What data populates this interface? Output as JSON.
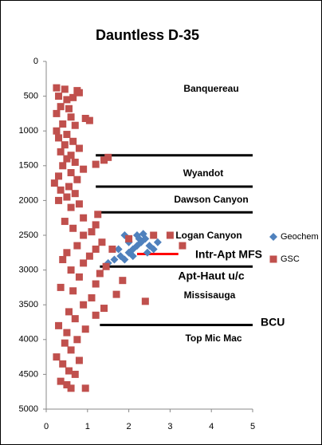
{
  "chart_data": {
    "type": "scatter",
    "title": "Dauntless D-35",
    "xlim": [
      0,
      5
    ],
    "xticks": [
      0,
      1,
      2,
      3,
      4,
      5
    ],
    "ylim": [
      0,
      5000
    ],
    "yticks": [
      0,
      500,
      1000,
      1500,
      2000,
      2500,
      3000,
      3500,
      4000,
      4500,
      5000
    ],
    "y_inverted": true,
    "grid": false,
    "legend": "right",
    "series": [
      {
        "name": "Geochem",
        "color": "#4f81bd",
        "marker": "diamond",
        "x": [
          1.5,
          1.65,
          1.8,
          1.9,
          2.0,
          2.1,
          2.2,
          2.3,
          2.4,
          2.5,
          2.7,
          2.2,
          2.0,
          1.9,
          2.35,
          2.6,
          2.1,
          1.75,
          2.45,
          2.25
        ],
        "values": [
          2900,
          2850,
          2800,
          2850,
          2750,
          2700,
          2650,
          2600,
          2550,
          2650,
          2600,
          2500,
          2600,
          2500,
          2480,
          2700,
          2800,
          2700,
          2750,
          2550
        ]
      },
      {
        "name": "GSC",
        "color": "#c0504d",
        "marker": "square",
        "x": [
          0.25,
          0.45,
          0.75,
          0.8,
          0.3,
          0.5,
          0.65,
          0.35,
          0.55,
          0.25,
          0.6,
          0.95,
          1.05,
          0.4,
          0.7,
          0.25,
          0.5,
          0.3,
          0.65,
          0.45,
          0.8,
          0.35,
          0.6,
          0.5,
          0.7,
          1.2,
          1.4,
          1.5,
          0.4,
          0.9,
          0.6,
          0.3,
          0.75,
          0.2,
          0.55,
          0.35,
          0.7,
          0.5,
          0.3,
          0.8,
          0.6,
          1.25,
          0.9,
          0.45,
          1.2,
          0.65,
          1.1,
          0.9,
          2.0,
          2.6,
          1.35,
          0.75,
          1.2,
          1.6,
          0.5,
          1.05,
          0.4,
          0.9,
          1.45,
          0.6,
          1.3,
          0.8,
          1.85,
          0.35,
          1.2,
          1.7,
          0.65,
          1.1,
          2.4,
          0.9,
          1.4,
          0.55,
          1.2,
          0.7,
          0.3,
          0.95,
          0.5,
          0.75,
          0.45,
          0.6,
          0.25,
          0.8,
          0.4,
          0.55,
          0.7,
          0.35,
          0.5,
          0.6,
          0.95,
          3.3,
          3.0
        ],
        "values": [
          380,
          400,
          420,
          450,
          500,
          550,
          520,
          650,
          680,
          750,
          800,
          820,
          850,
          900,
          920,
          1000,
          1050,
          1100,
          1150,
          1200,
          1250,
          1300,
          1350,
          1400,
          1450,
          1480,
          1420,
          1380,
          1500,
          1550,
          1600,
          1650,
          1700,
          1750,
          1800,
          1850,
          1900,
          1950,
          2000,
          2050,
          2100,
          2200,
          2250,
          2300,
          2350,
          2400,
          2450,
          2500,
          2550,
          2500,
          2600,
          2650,
          2700,
          2700,
          2750,
          2800,
          2850,
          2900,
          2950,
          3000,
          3050,
          3100,
          3150,
          3250,
          3200,
          3350,
          3300,
          3400,
          3450,
          3500,
          3550,
          3600,
          3650,
          3700,
          3800,
          3850,
          3900,
          4000,
          4050,
          4150,
          4250,
          4300,
          4350,
          4450,
          4500,
          4600,
          4650,
          4700,
          4700,
          2650,
          2500
        ]
      }
    ],
    "horizontal_lines": [
      {
        "y": 1350,
        "x": [
          1.2,
          5
        ],
        "color": "#000000"
      },
      {
        "y": 1800,
        "x": [
          1.2,
          5
        ],
        "color": "#000000"
      },
      {
        "y": 2170,
        "x": [
          1.2,
          5
        ],
        "color": "#000000"
      },
      {
        "y": 2770,
        "x": [
          2.2,
          3.2
        ],
        "color": "#ff0000"
      },
      {
        "y": 2950,
        "x": [
          1.3,
          5
        ],
        "color": "#000000"
      },
      {
        "y": 3790,
        "x": [
          1.3,
          5
        ],
        "color": "#000000"
      }
    ],
    "annotations": [
      {
        "text": "Banquereau",
        "color": "#000000"
      },
      {
        "text": "Wyandot",
        "color": "#000000"
      },
      {
        "text": "Dawson Canyon",
        "color": "#000000"
      },
      {
        "text": "Logan Canyon",
        "color": "#000000"
      },
      {
        "text": "Intr-Apt MFS",
        "color": "#ff0000"
      },
      {
        "text": "Apt-Haut u/c",
        "color": "#ff0000"
      },
      {
        "text": "Missisauga",
        "color": "#000000"
      },
      {
        "text": "BCU",
        "color": "#ff0000"
      },
      {
        "text": "Top Mic Mac",
        "color": "#000000"
      }
    ]
  }
}
